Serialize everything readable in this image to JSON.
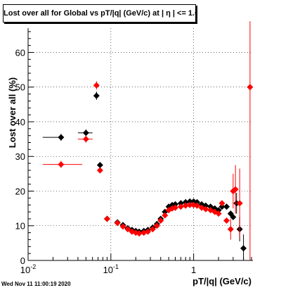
{
  "title": "Lost over all for Global vs pT/|q| (GeV/c) at |  η | <= 1.0",
  "datestamp": "Wed Nov 11 11:00:19 2020",
  "colors": {
    "series_black": "#000000",
    "series_red": "#ff0000",
    "axes": "#000000",
    "grid": "#000000"
  },
  "chart_data": {
    "type": "scatter",
    "title": "Lost over all for Global vs pT/|q| (GeV/c) at |  η | <= 1.0",
    "xlabel": "pT/|q| (GeV/c)",
    "ylabel": "Lost over all (%)",
    "xscale": "log",
    "xlim": [
      0.01,
      5.2
    ],
    "ylim": [
      0,
      67
    ],
    "grid": true,
    "x_ticks": [
      {
        "value": 0.01,
        "base": "10",
        "exp": "-2"
      },
      {
        "value": 0.1,
        "base": "10",
        "exp": "-1"
      },
      {
        "value": 1,
        "base": "1",
        "exp": ""
      }
    ],
    "y_ticks": [
      0,
      10,
      20,
      30,
      40,
      50,
      60
    ],
    "series": [
      {
        "color": "#000000",
        "points": [
          {
            "x": 0.025,
            "y": 35.5,
            "xerr": [
              0.015,
              0.025
            ],
            "yerr": 1.0
          },
          {
            "x": 0.05,
            "y": 36.8,
            "xerr": [
              0.04,
              0.06
            ],
            "yerr": 1.0
          },
          {
            "x": 0.067,
            "y": 47.5,
            "yerr": 1.2
          },
          {
            "x": 0.074,
            "y": 27.5,
            "yerr": 0.8
          },
          {
            "x": 0.09,
            "y": 12.0,
            "yerr": 0.6
          },
          {
            "x": 0.12,
            "y": 11.0
          },
          {
            "x": 0.14,
            "y": 10.2
          },
          {
            "x": 0.16,
            "y": 9.3
          },
          {
            "x": 0.18,
            "y": 8.8
          },
          {
            "x": 0.2,
            "y": 8.5
          },
          {
            "x": 0.22,
            "y": 8.3
          },
          {
            "x": 0.25,
            "y": 8.5
          },
          {
            "x": 0.28,
            "y": 8.8
          },
          {
            "x": 0.32,
            "y": 9.5
          },
          {
            "x": 0.36,
            "y": 10.5
          },
          {
            "x": 0.4,
            "y": 12.0
          },
          {
            "x": 0.45,
            "y": 14.0
          },
          {
            "x": 0.5,
            "y": 15.5
          },
          {
            "x": 0.55,
            "y": 16.0
          },
          {
            "x": 0.6,
            "y": 16.2
          },
          {
            "x": 0.7,
            "y": 16.5
          },
          {
            "x": 0.8,
            "y": 16.8
          },
          {
            "x": 0.9,
            "y": 17.0
          },
          {
            "x": 1.0,
            "y": 17.0
          },
          {
            "x": 1.1,
            "y": 16.8
          },
          {
            "x": 1.25,
            "y": 16.2
          },
          {
            "x": 1.4,
            "y": 15.8
          },
          {
            "x": 1.6,
            "y": 15.5
          },
          {
            "x": 1.8,
            "y": 15.0
          },
          {
            "x": 2.0,
            "y": 14.5
          },
          {
            "x": 2.2,
            "y": 15.5
          },
          {
            "x": 2.5,
            "y": 15.5
          },
          {
            "x": 2.8,
            "y": 13.5
          },
          {
            "x": 3.0,
            "y": 12.5
          },
          {
            "x": 3.3,
            "y": 16.5,
            "yerr": 3.0
          },
          {
            "x": 3.6,
            "y": 9.0,
            "yerr": 3.5
          },
          {
            "x": 4.0,
            "y": 3.5,
            "yerr": 4.0
          }
        ]
      },
      {
        "color": "#ff0000",
        "points": [
          {
            "x": 0.025,
            "y": 27.7,
            "xerr": [
              0.015,
              0.045
            ],
            "yerr": 1.0
          },
          {
            "x": 0.05,
            "y": 35.0,
            "xerr": [
              0.04,
              0.06
            ],
            "yerr": 1.0
          },
          {
            "x": 0.067,
            "y": 50.5,
            "yerr": 1.2
          },
          {
            "x": 0.074,
            "y": 26.0,
            "yerr": 0.8
          },
          {
            "x": 0.09,
            "y": 12.0,
            "yerr": 0.6
          },
          {
            "x": 0.12,
            "y": 10.8
          },
          {
            "x": 0.14,
            "y": 9.8
          },
          {
            "x": 0.16,
            "y": 9.0
          },
          {
            "x": 0.18,
            "y": 8.3
          },
          {
            "x": 0.2,
            "y": 8.0
          },
          {
            "x": 0.22,
            "y": 7.8
          },
          {
            "x": 0.25,
            "y": 8.0
          },
          {
            "x": 0.28,
            "y": 8.3
          },
          {
            "x": 0.32,
            "y": 9.0
          },
          {
            "x": 0.36,
            "y": 10.0
          },
          {
            "x": 0.4,
            "y": 11.5
          },
          {
            "x": 0.45,
            "y": 13.0
          },
          {
            "x": 0.5,
            "y": 14.5
          },
          {
            "x": 0.55,
            "y": 15.0
          },
          {
            "x": 0.6,
            "y": 15.2
          },
          {
            "x": 0.7,
            "y": 15.5
          },
          {
            "x": 0.8,
            "y": 15.8
          },
          {
            "x": 0.9,
            "y": 16.0
          },
          {
            "x": 1.0,
            "y": 16.0
          },
          {
            "x": 1.1,
            "y": 15.8
          },
          {
            "x": 1.25,
            "y": 15.2
          },
          {
            "x": 1.4,
            "y": 14.8
          },
          {
            "x": 1.6,
            "y": 14.5
          },
          {
            "x": 1.8,
            "y": 14.0
          },
          {
            "x": 2.0,
            "y": 13.5
          },
          {
            "x": 2.2,
            "y": 16.5
          },
          {
            "x": 2.5,
            "y": 11.5
          },
          {
            "x": 2.8,
            "y": 9.0,
            "yerr": 3.0
          },
          {
            "x": 3.0,
            "y": 20.0,
            "yerr": 5.0
          },
          {
            "x": 3.2,
            "y": 20.5,
            "yerr": 7.0
          },
          {
            "x": 3.6,
            "y": 16.5,
            "yerr": 10.0
          },
          {
            "x": 4.8,
            "y": 50.0,
            "yerr": 50.0
          }
        ]
      }
    ]
  }
}
